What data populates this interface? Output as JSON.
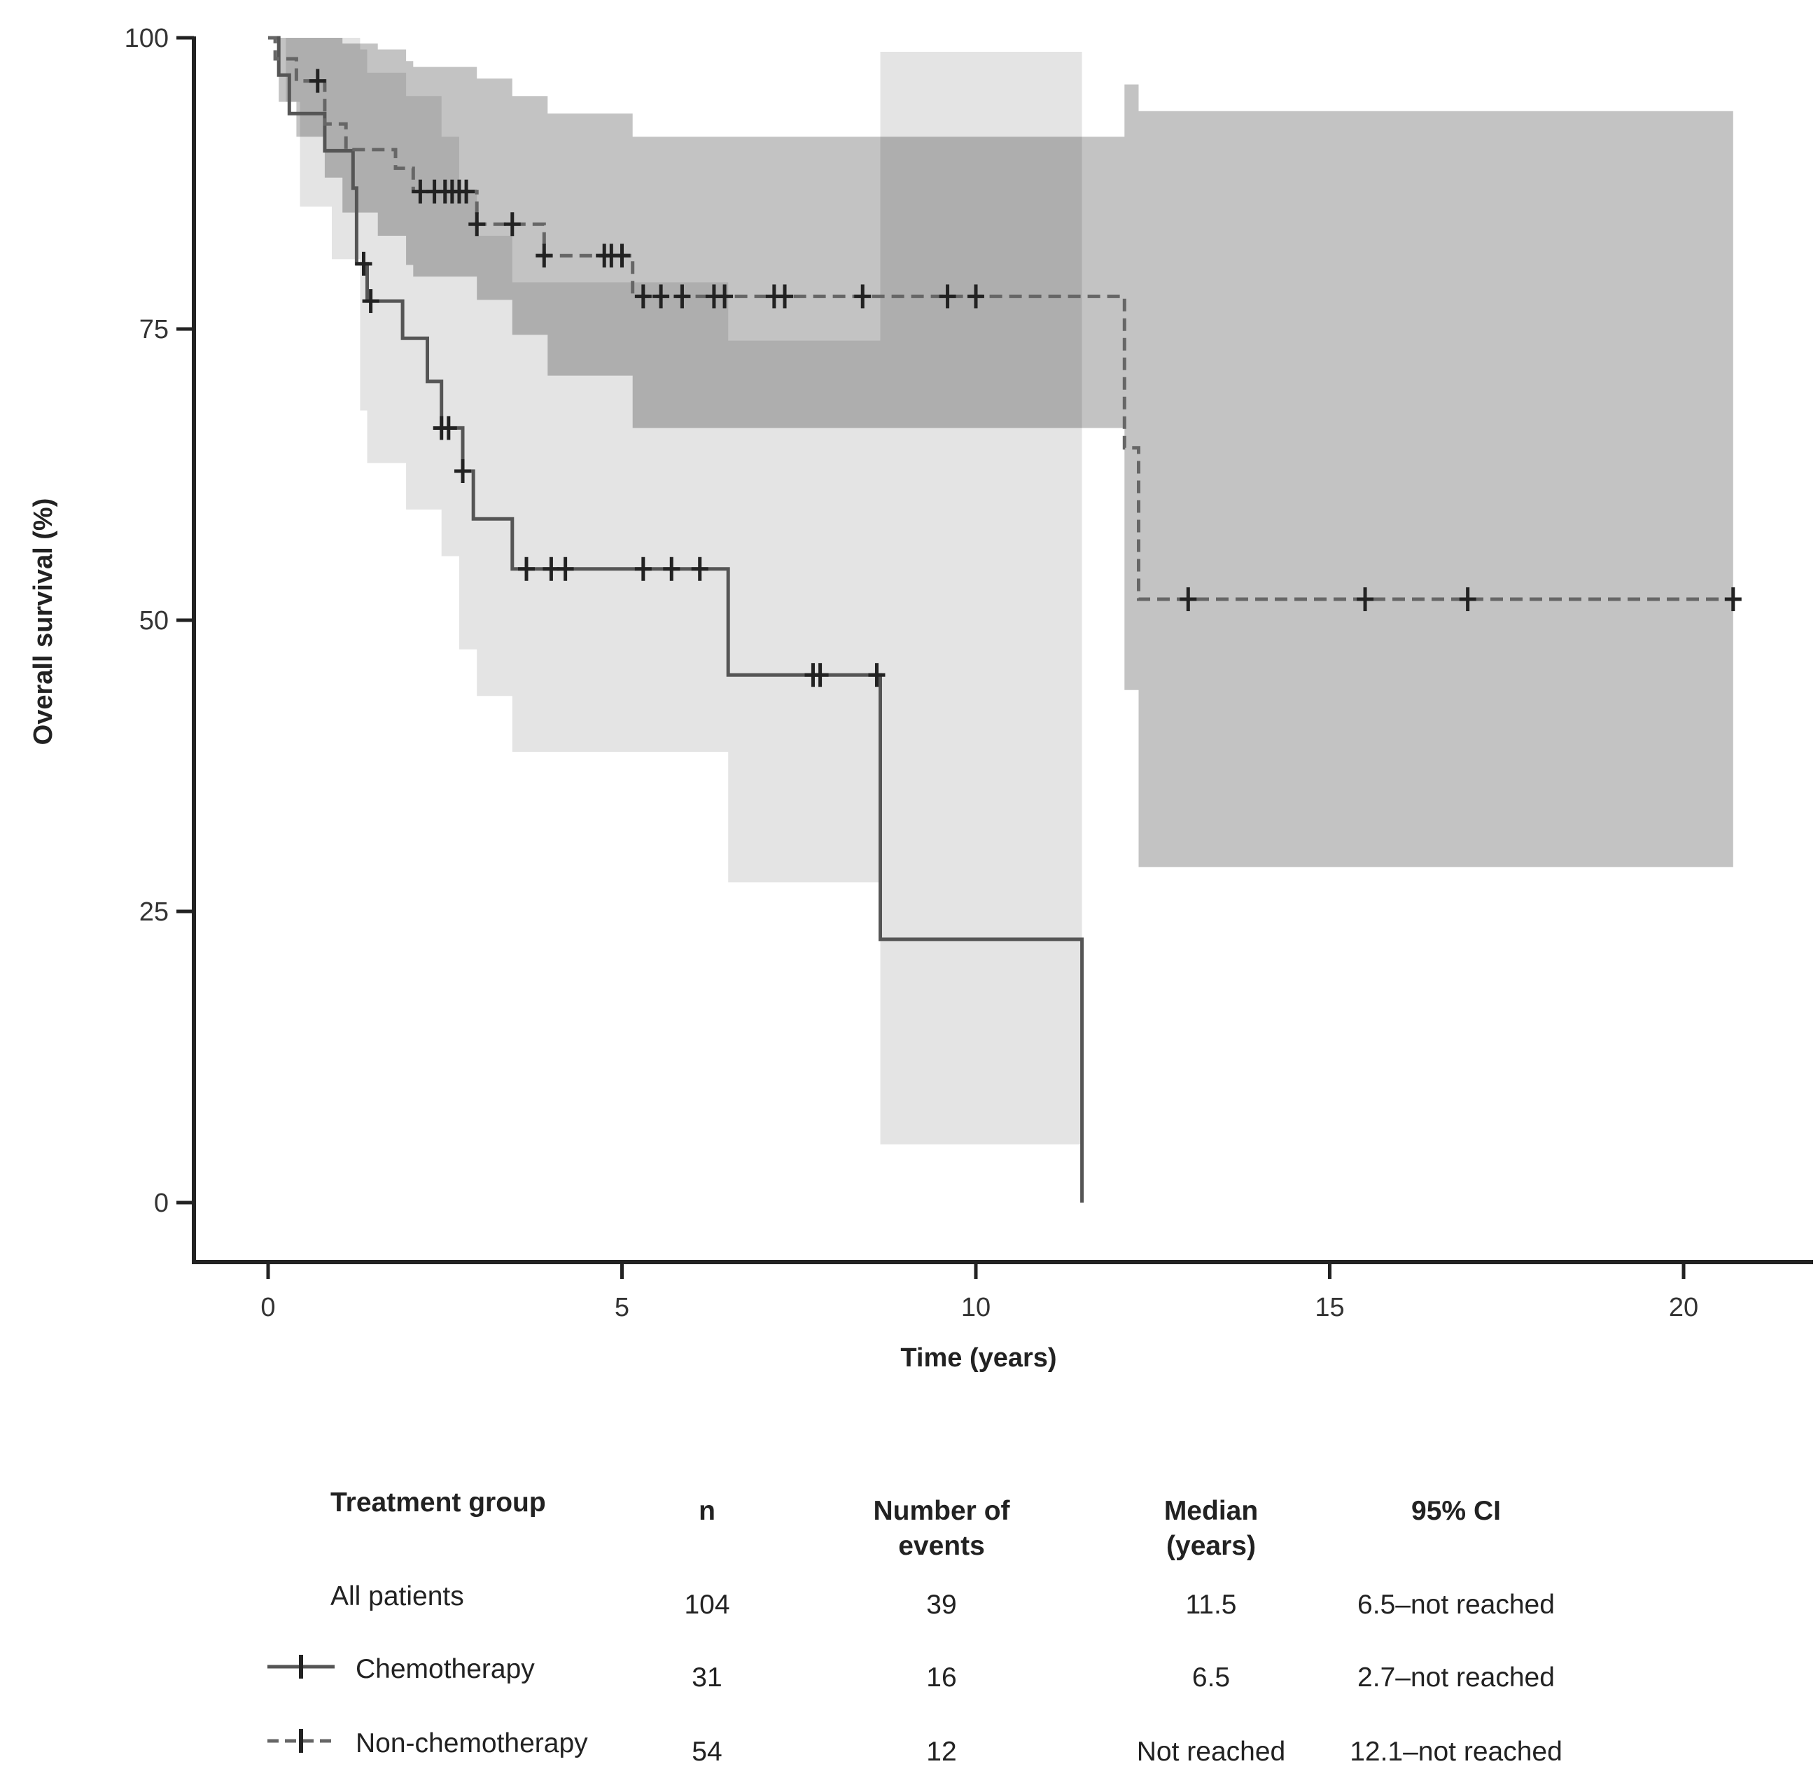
{
  "chart_data": {
    "type": "line",
    "subtype": "kaplan-meier",
    "title": "",
    "xlabel": "Time (years)",
    "ylabel": "Overall survival (%)",
    "xlim": [
      -1,
      21.5
    ],
    "ylim": [
      -5,
      100
    ],
    "xticks": [
      0,
      5,
      10,
      15,
      20
    ],
    "yticks": [
      0,
      25,
      50,
      75,
      100
    ],
    "colors": {
      "chemo_line": "#555555",
      "nonchemo_line": "#666666",
      "chemo_ci": "#e4e4e4",
      "nonchemo_ci": "#c3c3c3",
      "overlap_ci": "#aaaaaa",
      "axis": "#222222"
    },
    "series": [
      {
        "name": "Chemotherapy",
        "style": "solid",
        "steps": [
          [
            0,
            100
          ],
          [
            0.15,
            96.8
          ],
          [
            0.3,
            93.5
          ],
          [
            0.8,
            90.3
          ],
          [
            1.2,
            87.1
          ],
          [
            1.25,
            80.6
          ],
          [
            1.4,
            77.4
          ],
          [
            1.9,
            74.2
          ],
          [
            2.25,
            70.5
          ],
          [
            2.45,
            66.5
          ],
          [
            2.75,
            62.8
          ],
          [
            2.9,
            58.7
          ],
          [
            3.45,
            54.4
          ],
          [
            6.5,
            45.3
          ],
          [
            8.65,
            22.6
          ],
          [
            11.5,
            0
          ]
        ],
        "end_x": 11.5,
        "censored": [
          1.35,
          1.45,
          2.45,
          2.55,
          2.75,
          3.65,
          4.0,
          4.2,
          5.3,
          5.7,
          6.1,
          7.7,
          7.8,
          8.6
        ],
        "ci": [
          [
            0,
            100,
            100
          ],
          [
            0.25,
            94.5,
            100
          ],
          [
            0.45,
            85.5,
            100
          ],
          [
            0.9,
            81.0,
            100
          ],
          [
            1.3,
            68.0,
            99.0
          ],
          [
            1.4,
            63.5,
            97.0
          ],
          [
            1.95,
            59.5,
            95.0
          ],
          [
            2.45,
            55.5,
            91.5
          ],
          [
            2.7,
            47.5,
            87.0
          ],
          [
            2.95,
            43.5,
            83.0
          ],
          [
            3.45,
            38.7,
            79.0
          ],
          [
            6.5,
            27.5,
            74.0
          ],
          [
            8.65,
            5.0,
            98.8
          ],
          [
            11.5,
            5.0,
            98.8
          ]
        ]
      },
      {
        "name": "Non-chemotherapy",
        "style": "dashed",
        "steps": [
          [
            0,
            100
          ],
          [
            0.1,
            98.2
          ],
          [
            0.4,
            96.3
          ],
          [
            0.8,
            92.6
          ],
          [
            1.1,
            90.4
          ],
          [
            1.8,
            88.8
          ],
          [
            2.05,
            86.8
          ],
          [
            2.95,
            84.0
          ],
          [
            3.9,
            81.3
          ],
          [
            5.15,
            77.8
          ],
          [
            12.1,
            64.8
          ],
          [
            12.3,
            51.8
          ],
          [
            20.7,
            51.8
          ]
        ],
        "end_x": 20.7,
        "censored": [
          0.7,
          2.15,
          2.35,
          2.5,
          2.6,
          2.7,
          2.8,
          2.95,
          3.45,
          3.9,
          4.75,
          4.85,
          5.0,
          5.3,
          5.55,
          5.85,
          6.3,
          6.45,
          7.15,
          7.3,
          8.4,
          9.6,
          10.0,
          13.0,
          15.5,
          16.95,
          20.7
        ],
        "ci": [
          [
            0,
            100,
            100
          ],
          [
            0.15,
            94.5,
            100
          ],
          [
            0.4,
            91.5,
            100
          ],
          [
            0.8,
            88.0,
            100
          ],
          [
            1.05,
            85.0,
            99.5
          ],
          [
            1.55,
            83.0,
            99.0
          ],
          [
            1.95,
            80.5,
            98.0
          ],
          [
            2.05,
            79.5,
            97.5
          ],
          [
            2.95,
            77.5,
            96.5
          ],
          [
            3.45,
            74.5,
            95.0
          ],
          [
            3.95,
            71.0,
            93.5
          ],
          [
            5.15,
            66.5,
            91.5
          ],
          [
            12.1,
            44.0,
            96.0
          ],
          [
            12.3,
            28.8,
            93.7
          ],
          [
            20.7,
            28.8,
            93.7
          ]
        ]
      }
    ]
  },
  "table": {
    "headers": {
      "group": "Treatment group",
      "n": "n",
      "events": "Number of events",
      "median": "Median (years)",
      "ci": "95% CI"
    },
    "rows": [
      {
        "group": "All patients",
        "n": "104",
        "events": "39",
        "median": "11.5",
        "ci": "6.5–not reached"
      },
      {
        "group": "Chemotherapy",
        "n": "31",
        "events": "16",
        "median": "6.5",
        "ci": "2.7–not reached"
      },
      {
        "group": "Non-chemotherapy",
        "n": "54",
        "events": "12",
        "median": "Not reached",
        "ci": "12.1–not reached"
      }
    ]
  }
}
